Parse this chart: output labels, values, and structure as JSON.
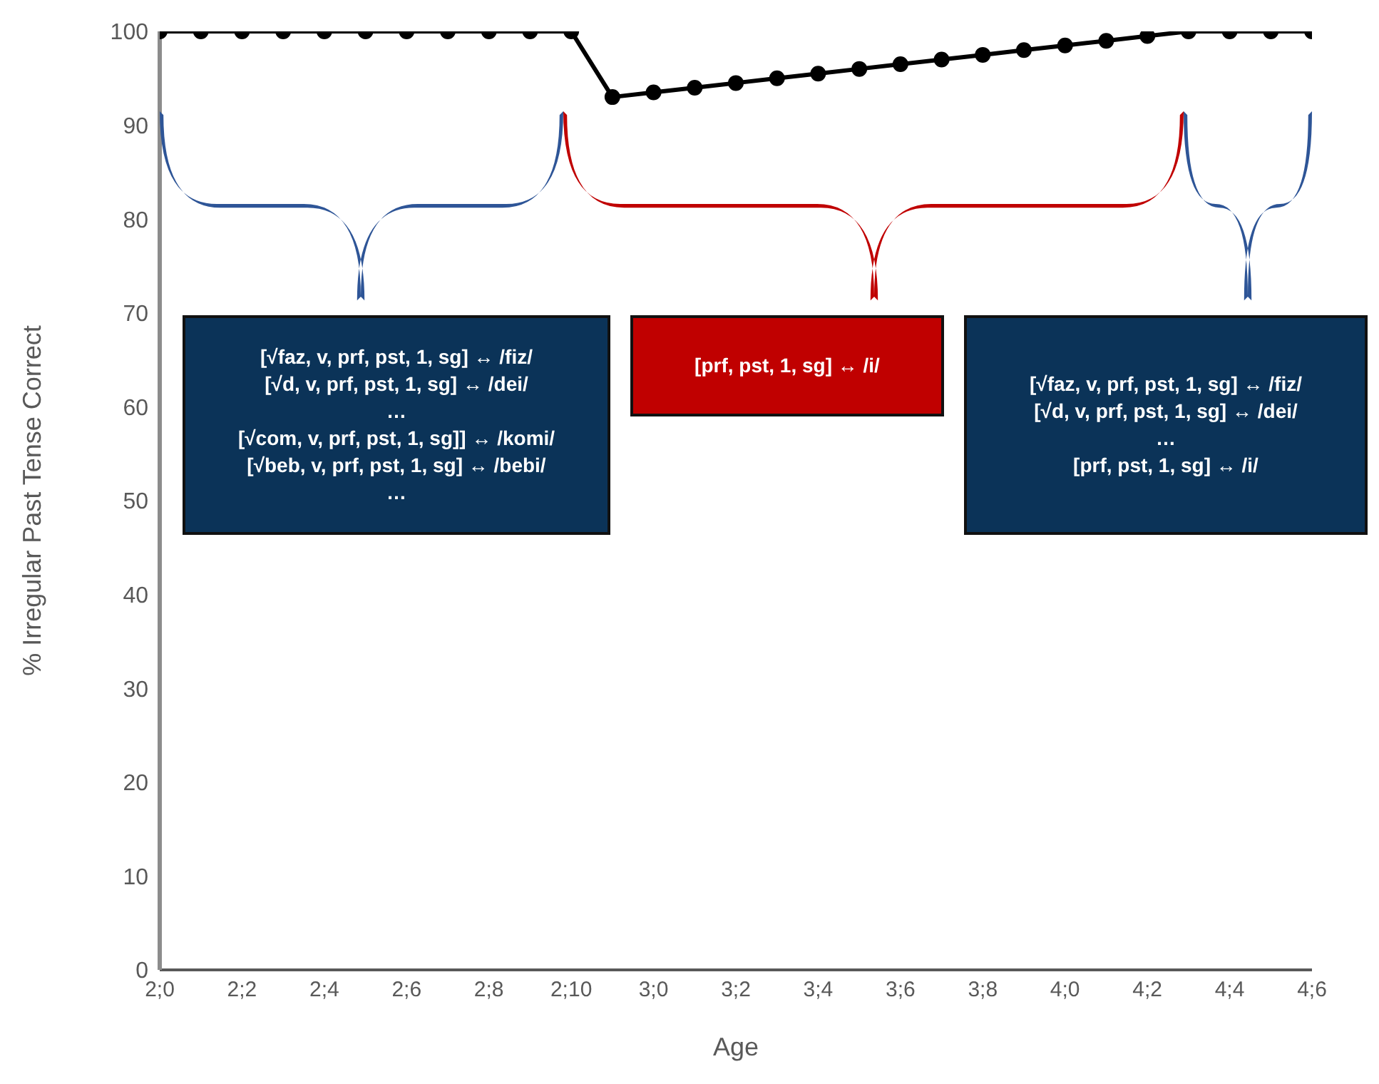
{
  "chart_data": {
    "type": "line",
    "xlabel": "Age",
    "ylabel": "% Irregular Past Tense Correct",
    "categories": [
      "2;0",
      null,
      "2;2",
      null,
      "2;4",
      null,
      "2;6",
      null,
      "2;8",
      null,
      "2;10",
      null,
      "3;0",
      null,
      "3;2",
      null,
      "3;4",
      null,
      "3;6",
      null,
      "3;8",
      null,
      "4;0",
      null,
      "4;2",
      null,
      "4;4",
      null,
      "4;6"
    ],
    "series": [
      {
        "color": "#000000",
        "values": [
          100,
          100,
          100,
          100,
          100,
          100,
          100,
          100,
          100,
          100,
          100,
          93,
          93.5,
          94,
          94.5,
          95,
          95.5,
          96,
          96.5,
          97,
          97.5,
          98,
          98.5,
          99,
          99.5,
          100,
          100,
          100,
          100
        ]
      }
    ],
    "ylim": [
      0,
      100
    ],
    "yticks": [
      0,
      10,
      20,
      30,
      40,
      50,
      60,
      70,
      80,
      90,
      100
    ],
    "marker": "circle",
    "line_style": "solid",
    "annotations": [
      "[√faz, v, prf, pst, 1, sg] ↔ /fiz/\n[√d, v, prf, pst, 1, sg] ↔ /dei/\n…\n[√com, v, prf, pst, 1, sg]] ↔ /komi/\n[√beb, v, prf, pst, 1, sg] ↔ /bebi/\n…",
      "[prf, pst, 1, sg] ↔ /i/",
      "[√faz, v, prf, pst, 1, sg] ↔ /fiz/\n[√d, v, prf, pst, 1, sg] ↔ /dei/\n…\n[prf, pst, 1, sg] ↔ /i/"
    ]
  }
}
